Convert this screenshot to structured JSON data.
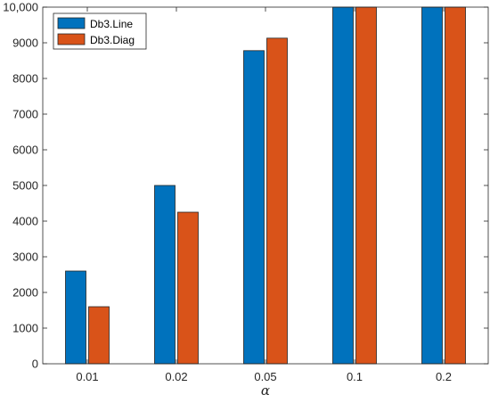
{
  "chart_data": {
    "type": "bar",
    "title": "",
    "xlabel": "α",
    "ylabel": "",
    "categories": [
      "0.01",
      "0.02",
      "0.05",
      "0.1",
      "0.2"
    ],
    "series": [
      {
        "name": "Db3.Line",
        "values": [
          2600,
          5000,
          8780,
          10000,
          10000
        ],
        "color": "#0072BD"
      },
      {
        "name": "Db3.Diag",
        "values": [
          1600,
          4250,
          9130,
          10000,
          10000
        ],
        "color": "#D95319"
      }
    ],
    "ylim": [
      0,
      10000
    ],
    "yticks": [
      0,
      1000,
      2000,
      3000,
      4000,
      5000,
      6000,
      7000,
      8000,
      9000,
      10000
    ],
    "ytick_labels": [
      "0",
      "1000",
      "2000",
      "3000",
      "4000",
      "5000",
      "6000",
      "7000",
      "8000",
      "9000",
      "10,000"
    ],
    "grid": false,
    "legend": "top-left",
    "axis_color": "#262626",
    "bar_edge_color": "#262626"
  }
}
